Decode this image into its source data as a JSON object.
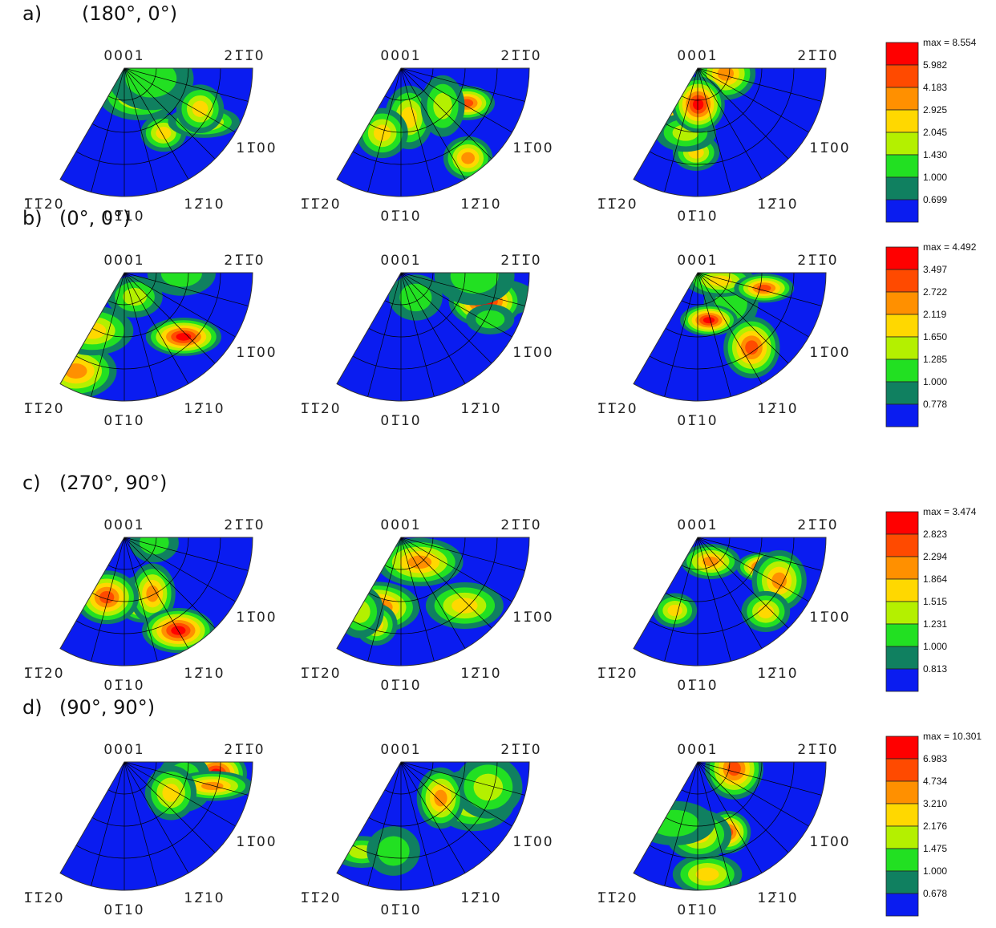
{
  "pole_labels": {
    "top_left": "0001",
    "top_right": "21̅1̅0",
    "right": "11̅00",
    "bottom_right": "12̅10",
    "bottom": "01̅10",
    "bottom_left": "1̅1̅20"
  },
  "rows": [
    {
      "label": "a)",
      "angles": "(180°, 0°)",
      "legend": {
        "max": "max = 8.554",
        "levels": [
          "5.982",
          "4.183",
          "2.925",
          "2.045",
          "1.430",
          "1.000",
          "0.699"
        ]
      }
    },
    {
      "label": "b)",
      "angles": "(0°, 0°)",
      "legend": {
        "max": "max = 4.492",
        "levels": [
          "3.497",
          "2.722",
          "2.119",
          "1.650",
          "1.285",
          "1.000",
          "0.778"
        ]
      }
    },
    {
      "label": "c)",
      "angles": "(270°, 90°)",
      "legend": {
        "max": "max = 3.474",
        "levels": [
          "2.823",
          "2.294",
          "1.864",
          "1.515",
          "1.231",
          "1.000",
          "0.813"
        ]
      }
    },
    {
      "label": "d)",
      "angles": "(90°, 90°)",
      "legend": {
        "max": "max = 10.301",
        "levels": [
          "6.983",
          "4.734",
          "3.210",
          "2.176",
          "1.475",
          "1.000",
          "0.678"
        ]
      }
    }
  ]
}
